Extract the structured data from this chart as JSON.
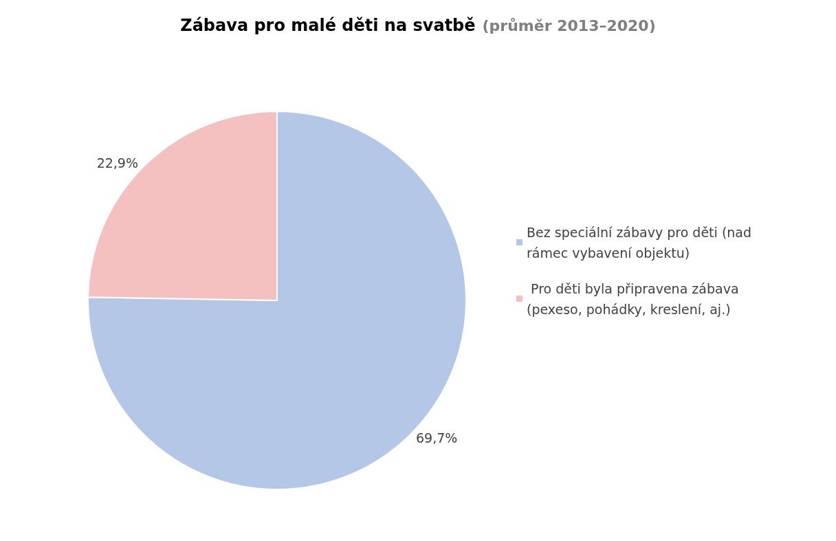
{
  "chart_data": {
    "type": "pie",
    "title": "Zábava pro malé děti na svatbě",
    "subtitle": "(průměr 2013–2020)",
    "categories": [
      "Bez speciální zábavy pro děti (nad rámec vybavení objektu)",
      " Pro děti byla připravena zábava (pexeso, pohádky, kreslení, aj.)"
    ],
    "values": [
      69.7,
      22.9
    ],
    "colors": [
      "#b4c7e7",
      "#f4c0c0"
    ],
    "value_labels": [
      "69,7%",
      "22,9%"
    ],
    "legend": "right"
  }
}
